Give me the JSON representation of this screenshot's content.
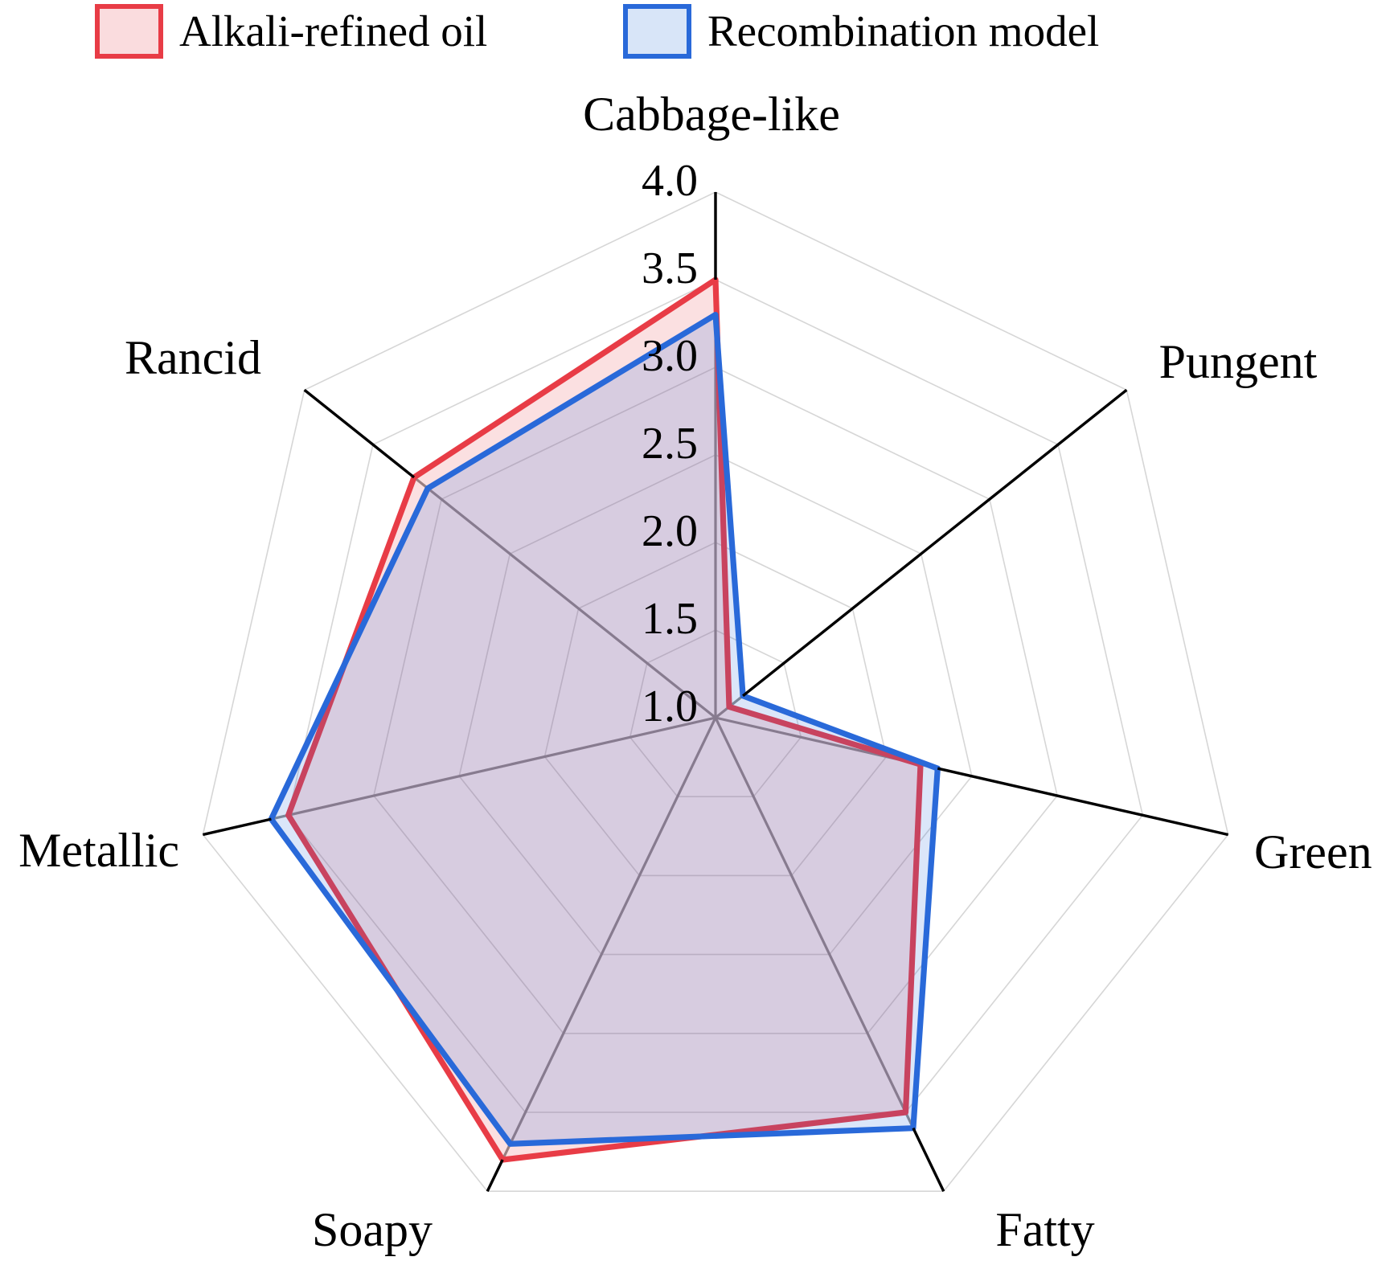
{
  "legend": {
    "items": [
      {
        "label": "Alkali-refined oil"
      },
      {
        "label": "Recombination model"
      }
    ]
  },
  "chart_data": {
    "type": "radar",
    "title": "",
    "categories": [
      "Cabbage-like",
      "Pungent",
      "Green",
      "Fatty",
      "Soapy",
      "Metallic",
      "Rancid"
    ],
    "series": [
      {
        "name": "Alkali-refined oil",
        "values": [
          3.5,
          1.1,
          2.2,
          3.5,
          3.8,
          3.5,
          3.2
        ],
        "line_color": "#e83c46",
        "fill_color": "rgba(232,60,70,0.16)",
        "swatch_fill": "#fadcde"
      },
      {
        "name": "Recombination model",
        "values": [
          3.3,
          1.2,
          2.3,
          3.6,
          3.7,
          3.6,
          3.1
        ],
        "line_color": "#2969d9",
        "fill_color": "rgba(41,105,217,0.17)",
        "swatch_fill": "#d8e5f8"
      }
    ],
    "radial_ticks": [
      "4.0",
      "3.5",
      "3.0",
      "2.5",
      "2.0",
      "1.5",
      "1.0"
    ],
    "r_min": 1.0,
    "r_max": 4.0,
    "grid_step": 0.5,
    "start_angle_deg": 90,
    "direction": "clockwise",
    "grid": {
      "ring_color": "#d6d6d6",
      "spoke_color": "#8c8c8c",
      "axis_color": "#000000",
      "legend_position": "top"
    }
  }
}
